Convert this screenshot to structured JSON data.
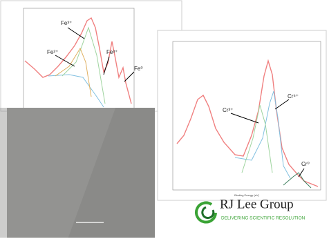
{
  "left_spectrum": {
    "labels": [
      "Fe³⁺",
      "Fe²⁺",
      "Fe³⁺",
      "Fe⁰"
    ]
  },
  "right_spectrum": {
    "labels": [
      "Cr³⁺",
      "Cr⁶⁺",
      "Cr⁰"
    ],
    "x_label": "Binding Energy (eV)"
  },
  "logo": {
    "name": "RJ Lee Group",
    "tagline": "DELIVERING SCIENTIFIC RESOLUTION"
  }
}
